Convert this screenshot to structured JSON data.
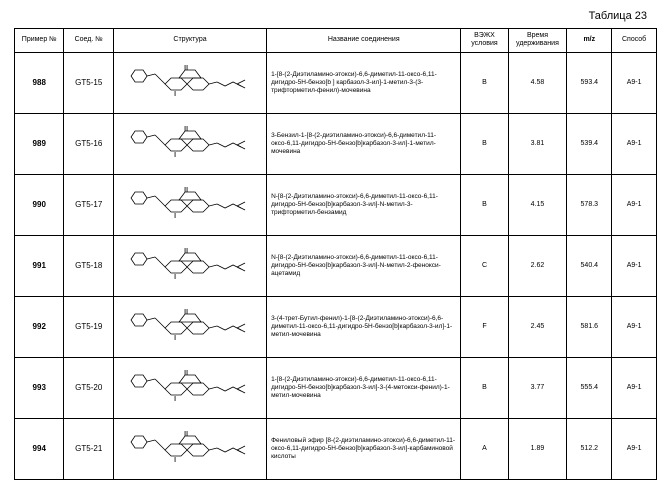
{
  "title": "Таблица 23",
  "headers": {
    "example": "Пример №",
    "compound": "Соед. №",
    "structure": "Структура",
    "name": "Название соединения",
    "hplc": "ВЭЖХ условия",
    "rt": "Время удерживания",
    "mz": "m/z",
    "method": "Способ"
  },
  "rows": [
    {
      "example": "988",
      "compound": "GT5-15",
      "name": "1-[8-(2-Диэтиламино-этокси)-6,6-диметил-11-оксо-6,11-дигидро-5H-бензо[b ] карбазол-3-ил]-1-метил-3-(3-трифторметил-фенил)-мочевина",
      "hplc": "B",
      "rt": "4.58",
      "mz": "593.4",
      "method": "A9-1"
    },
    {
      "example": "989",
      "compound": "GT5-16",
      "name": "3-Бензил-1-[8-(2-диэтиламино-этокси)-6,6-диметил-11-оксо-6,11-дигидро-5H-бензо[b]карбазол-3-ил]-1-метил-мочевина",
      "hplc": "B",
      "rt": "3.81",
      "mz": "539.4",
      "method": "A9-1"
    },
    {
      "example": "990",
      "compound": "GT5-17",
      "name": "N-[8-(2-Диэтиламино-этокси)-6,6-диметил-11-оксо-6,11-дигидро-5H-бензо[b]карбазол-3-ил]-N-метил-3-трифторметил-бензамид",
      "hplc": "B",
      "rt": "4.15",
      "mz": "578.3",
      "method": "A9-1"
    },
    {
      "example": "991",
      "compound": "GT5-18",
      "name": "N-[8-(2-Диэтиламино-этокси)-6,6-диметил-11-оксо-6,11-дигидро-5H-бензо[b]карбазол-3-ил]-N-метил-2-фенокси-ацетамид",
      "hplc": "C",
      "rt": "2.62",
      "mz": "540.4",
      "method": "A9-1"
    },
    {
      "example": "992",
      "compound": "GT5-19",
      "name": "3-(4-трет-Бутил-фенил)-1-[8-(2-Диэтиламино-этокси)-6,6-диметил-11-оксо-6,11-дигидро-5H-бензо[b]карбазол-3-ил]-1-метил-мочевина",
      "hplc": "F",
      "rt": "2.45",
      "mz": "581.6",
      "method": "A9-1"
    },
    {
      "example": "993",
      "compound": "GT5-20",
      "name": "1-[8-(2-Диэтиламино-этокси)-6,6-диметил-11-оксо-6,11-дигидро-5H-бензо[b]карбазол-3-ил]-3-(4-метокси-фенил)-1-метил-мочевина",
      "hplc": "B",
      "rt": "3.77",
      "mz": "555.4",
      "method": "A9-1"
    },
    {
      "example": "994",
      "compound": "GT5-21",
      "name": "Фениловый эфир [8-(2-диэтиламино-этокси)-6,6-диметил-11-оксо-6,11-дигидро-5H-бензо[b]карбазол-3-ил]-карбаминовой кислоты",
      "hplc": "A",
      "rt": "1.89",
      "mz": "512.2",
      "method": "A9-1"
    }
  ],
  "style": {
    "stroke": "#000000",
    "stroke_width": 0.8,
    "font_family": "Arial"
  }
}
